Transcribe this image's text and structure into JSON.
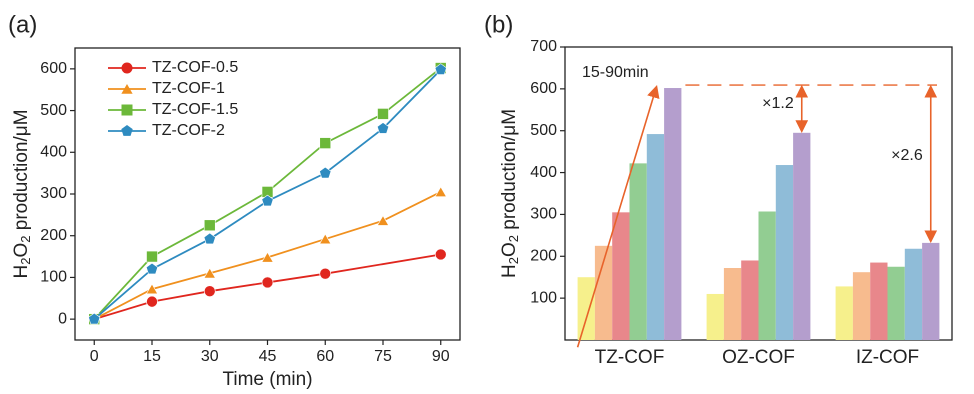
{
  "chart_data": [
    {
      "type": "line",
      "panel": "(a)",
      "xlabel": "Time (min)",
      "ylabel": [
        "H",
        "2",
        "O",
        "2",
        " production/μM"
      ],
      "xlim": [
        -5,
        95
      ],
      "xticks": [
        0,
        15,
        30,
        45,
        60,
        75,
        90
      ],
      "ylim": [
        -50,
        650
      ],
      "yticks": [
        0,
        100,
        200,
        300,
        400,
        500,
        600
      ],
      "series": [
        {
          "name": "TZ-COF-0.5",
          "color": "#e0261e",
          "marker": "circle",
          "x": [
            0,
            15,
            30,
            45,
            60,
            90
          ],
          "values": [
            0,
            42,
            67,
            88,
            109,
            155
          ]
        },
        {
          "name": "TZ-COF-1",
          "color": "#f0901e",
          "marker": "triangle",
          "x": [
            0,
            15,
            30,
            45,
            60,
            75,
            90
          ],
          "values": [
            0,
            72,
            110,
            148,
            192,
            236,
            305
          ]
        },
        {
          "name": "TZ-COF-1.5",
          "color": "#6cb83a",
          "marker": "square",
          "x": [
            0,
            15,
            30,
            45,
            60,
            75,
            90
          ],
          "values": [
            0,
            150,
            225,
            305,
            422,
            492,
            602
          ]
        },
        {
          "name": "TZ-COF-2",
          "color": "#2e8bc0",
          "marker": "pentagon",
          "x": [
            0,
            15,
            30,
            45,
            60,
            75,
            90
          ],
          "values": [
            0,
            120,
            192,
            283,
            350,
            457,
            598
          ]
        }
      ]
    },
    {
      "type": "bar",
      "panel": "(b)",
      "ylabel": [
        "H",
        "2",
        "O",
        "2",
        " production/μM"
      ],
      "categories": [
        "TZ-COF",
        "OZ-COF",
        "IZ-COF"
      ],
      "ylim": [
        0,
        700
      ],
      "yticks": [
        100,
        200,
        300,
        400,
        500,
        600,
        700
      ],
      "series": [
        {
          "color": "#f6f08c",
          "values": [
            150,
            110,
            128
          ]
        },
        {
          "color": "#f7bb8e",
          "values": [
            225,
            172,
            162
          ]
        },
        {
          "color": "#e8878b",
          "values": [
            305,
            190,
            185
          ]
        },
        {
          "color": "#92cd92",
          "values": [
            422,
            307,
            175
          ]
        },
        {
          "color": "#8fbcd8",
          "values": [
            492,
            418,
            218
          ]
        },
        {
          "color": "#b49ecd",
          "values": [
            602,
            495,
            232
          ]
        }
      ],
      "annotations": [
        "15-90min",
        "×1.2",
        "×2.6"
      ]
    }
  ]
}
